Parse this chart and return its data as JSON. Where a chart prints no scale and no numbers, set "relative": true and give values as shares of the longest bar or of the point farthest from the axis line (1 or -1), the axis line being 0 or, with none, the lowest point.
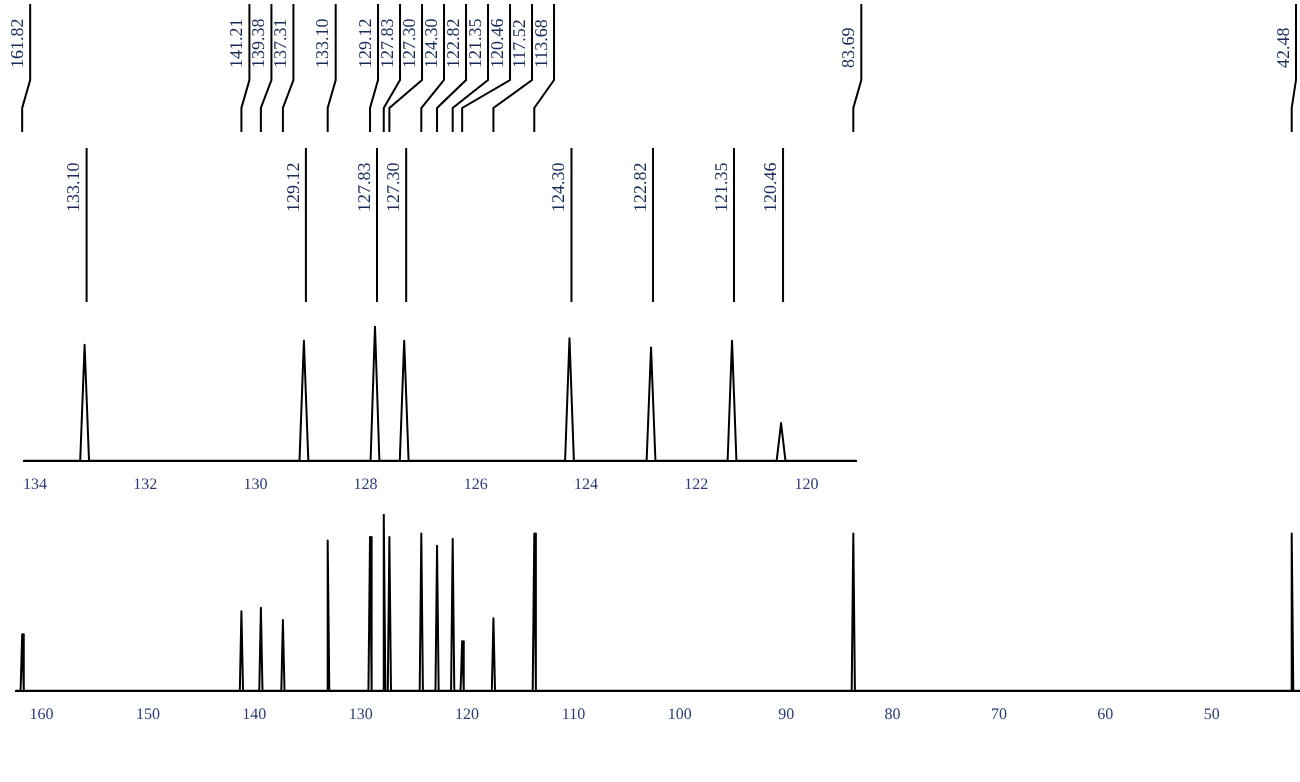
{
  "chart_data": [
    {
      "type": "line",
      "relative": true,
      "xlim": [
        162.4,
        41.7
      ],
      "xticks": [
        160,
        150,
        140,
        130,
        120,
        110,
        100,
        90,
        80,
        70,
        60,
        50
      ],
      "grid": false,
      "legend": false,
      "marker": "none",
      "line_style": "solid",
      "series": [
        {
          "color": "#000000",
          "x": [
            162.4,
            161.97,
            161.82,
            161.67,
            141.36,
            141.21,
            141.06,
            139.53,
            139.38,
            139.23,
            137.46,
            137.31,
            137.16,
            133.25,
            133.1,
            132.95,
            129.27,
            129.12,
            128.97,
            127.98,
            127.83,
            127.68,
            127.45,
            127.3,
            127.15,
            124.45,
            124.3,
            124.15,
            122.97,
            122.82,
            122.67,
            121.5,
            121.35,
            121.2,
            120.61,
            120.46,
            120.31,
            117.67,
            117.52,
            117.37,
            113.83,
            113.68,
            113.53,
            83.84,
            83.69,
            83.54,
            42.63,
            42.48,
            42.33,
            41.7
          ],
          "values": [
            0,
            0,
            0.32,
            0,
            0,
            0.45,
            0,
            0,
            0.47,
            0,
            0,
            0.4,
            0,
            0,
            0.85,
            0,
            0,
            0.87,
            0,
            0,
            1,
            0,
            0,
            0.87,
            0,
            0,
            0.89,
            0,
            0,
            0.82,
            0,
            0,
            0.86,
            0,
            0,
            0.28,
            0,
            0,
            0.41,
            0,
            0,
            0.89,
            0,
            0,
            0.89,
            0,
            0,
            0.89,
            0,
            0
          ]
        }
      ],
      "annotations": [
        "161.82",
        "141.21",
        "139.38",
        "137.31",
        "133.10",
        "129.12",
        "127.83",
        "127.30",
        "124.30",
        "122.82",
        "121.35",
        "120.46",
        "117.52",
        "113.68",
        "83.69",
        "42.48"
      ]
    },
    {
      "type": "line",
      "relative": true,
      "xlim": [
        134.2,
        119.1
      ],
      "xticks": [
        134,
        132,
        130,
        128,
        126,
        124,
        122,
        120
      ],
      "grid": false,
      "legend": false,
      "marker": "none",
      "line_style": "solid",
      "series": [
        {
          "color": "#000000",
          "x": [
            134.2,
            133.18,
            133.1,
            133.02,
            129.2,
            129.12,
            129.04,
            127.91,
            127.83,
            127.75,
            127.38,
            127.3,
            127.22,
            124.38,
            124.3,
            124.22,
            122.9,
            122.82,
            122.74,
            121.43,
            121.35,
            121.27,
            120.54,
            120.46,
            120.38,
            119.1
          ],
          "values": [
            0,
            0,
            0.86,
            0,
            0,
            0.89,
            0,
            0,
            1,
            0,
            0,
            0.89,
            0,
            0,
            0.91,
            0,
            0,
            0.84,
            0,
            0,
            0.89,
            0,
            0,
            0.28,
            0,
            0
          ]
        }
      ],
      "annotations": [
        "133.10",
        "129.12",
        "127.83",
        "127.30",
        "124.30",
        "122.82",
        "121.35",
        "120.46"
      ]
    }
  ]
}
